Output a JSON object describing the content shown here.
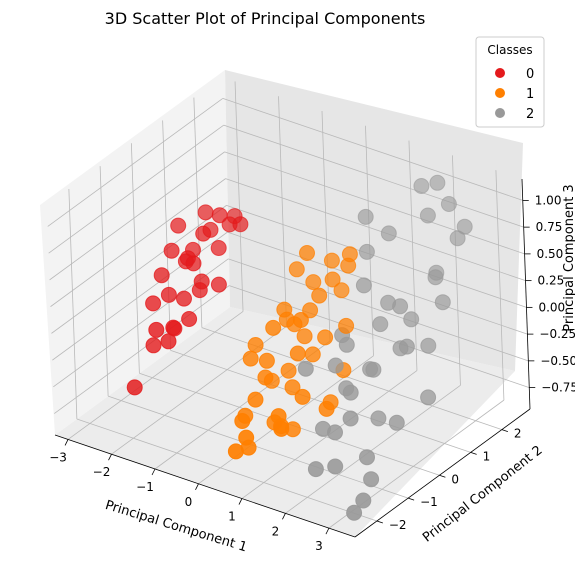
{
  "chart_data": {
    "type": "scatter",
    "projection": "3d",
    "title": "3D Scatter Plot of Principal Components",
    "xlabel": "Principal Component 1",
    "ylabel": "Principal Component 2",
    "zlabel": "Principal Component 3",
    "xlim": [
      -3.3,
      3.6
    ],
    "ylim": [
      -2.7,
      2.9
    ],
    "zlim": [
      -0.95,
      1.2
    ],
    "x_ticks": [
      -3,
      -2,
      -1,
      0,
      1,
      2,
      3
    ],
    "y_ticks": [
      -2,
      -1,
      0,
      1,
      2
    ],
    "z_ticks": [
      -0.75,
      -0.5,
      -0.25,
      0.0,
      0.25,
      0.5,
      0.75,
      1.0
    ],
    "z_tick_labels": [
      "−0.75",
      "−0.50",
      "−0.25",
      "0.00",
      "0.25",
      "0.50",
      "0.75",
      "1.00"
    ],
    "grid": true,
    "legend": {
      "title": "Classes",
      "placement": "top-right"
    },
    "series": [
      {
        "name": "0",
        "color": "#e41a1c",
        "points": [
          [
            -2.6,
            0.2,
            0.25
          ],
          [
            -2.7,
            -0.3,
            -0.15
          ],
          [
            -2.5,
            0.5,
            0.1
          ],
          [
            -2.4,
            -0.2,
            -0.05
          ],
          [
            -2.3,
            0.3,
            0.2
          ],
          [
            -2.2,
            0.0,
            -0.1
          ],
          [
            -2.2,
            0.9,
            0.35
          ],
          [
            -2.1,
            -0.5,
            -0.25
          ],
          [
            -2.0,
            0.4,
            0.45
          ],
          [
            -1.9,
            0.1,
            0.0
          ],
          [
            -2.8,
            0.7,
            0.35
          ],
          [
            -2.0,
            -0.8,
            -0.3
          ],
          [
            -1.8,
            0.6,
            0.3
          ],
          [
            -2.5,
            -0.6,
            -0.45
          ],
          [
            -2.3,
            0.9,
            0.5
          ],
          [
            -1.7,
            -0.1,
            0.15
          ],
          [
            -1.9,
            0.8,
            0.55
          ],
          [
            -2.6,
            -1.1,
            -0.75
          ],
          [
            -2.1,
            0.2,
            0.2
          ],
          [
            -2.4,
            0.6,
            0.2
          ],
          [
            -1.6,
            0.3,
            0.05
          ],
          [
            -2.2,
            -0.9,
            -0.2
          ],
          [
            -2.0,
            1.4,
            0.4
          ],
          [
            -1.8,
            -0.4,
            -0.15
          ],
          [
            -2.7,
            0.0,
            0.05
          ],
          [
            -2.3,
            -0.2,
            -0.35
          ],
          [
            -1.5,
            0.9,
            0.5
          ],
          [
            -1.9,
            1.1,
            0.4
          ]
        ]
      },
      {
        "name": "1",
        "color": "#ff7f00",
        "points": [
          [
            0.4,
            0.4,
            0.6
          ],
          [
            0.2,
            -0.7,
            -0.2
          ],
          [
            0.1,
            0.1,
            0.0
          ],
          [
            0.5,
            -1.5,
            -0.35
          ],
          [
            0.8,
            0.2,
            0.3
          ],
          [
            0.0,
            -0.3,
            -0.5
          ],
          [
            0.7,
            -1.2,
            -0.6
          ],
          [
            1.2,
            0.6,
            0.55
          ],
          [
            0.6,
            0.9,
            0.45
          ],
          [
            0.3,
            -0.9,
            -0.3
          ],
          [
            -0.2,
            -0.5,
            -0.15
          ],
          [
            1.0,
            -0.8,
            0.0
          ],
          [
            0.9,
            -0.2,
            -0.15
          ],
          [
            0.5,
            0.3,
            0.1
          ],
          [
            1.1,
            -1.6,
            -0.4
          ],
          [
            0.2,
            -0.1,
            0.15
          ],
          [
            0.8,
            0.9,
            0.2
          ],
          [
            -0.1,
            -0.8,
            -0.2
          ],
          [
            0.6,
            -1.9,
            -0.7
          ],
          [
            1.4,
            0.2,
            0.1
          ],
          [
            0.3,
            0.7,
            0.25
          ],
          [
            0.7,
            -0.6,
            -0.4
          ],
          [
            1.3,
            -1.1,
            -0.3
          ],
          [
            0.4,
            -0.3,
            -0.35
          ],
          [
            0.1,
            -1.3,
            -0.6
          ],
          [
            0.9,
            0.5,
            0.4
          ],
          [
            1.5,
            -0.5,
            -0.45
          ],
          [
            0.6,
            -2.3,
            -0.65
          ],
          [
            1.2,
            -0.2,
            0.05
          ],
          [
            0.0,
            0.6,
            0.35
          ],
          [
            0.5,
            0.1,
            -0.1
          ],
          [
            1.0,
            -1.4,
            -0.55
          ],
          [
            1.7,
            -0.9,
            -0.4
          ],
          [
            0.2,
            0.2,
            -0.05
          ],
          [
            0.8,
            -0.4,
            0.2
          ],
          [
            1.1,
            0.8,
            0.6
          ],
          [
            0.4,
            -1.8,
            -0.5
          ],
          [
            0.7,
            -2.1,
            -0.55
          ],
          [
            1.6,
            -0.2,
            -0.2
          ],
          [
            0.9,
            -0.9,
            -0.7
          ],
          [
            0.3,
            -0.6,
            0.1
          ],
          [
            1.3,
            -1.8,
            -0.45
          ]
        ]
      },
      {
        "name": "2",
        "color": "#999999",
        "points": [
          [
            1.7,
            2.3,
            1.0
          ],
          [
            2.0,
            2.4,
            1.05
          ],
          [
            2.4,
            2.2,
            0.95
          ],
          [
            2.2,
            1.8,
            0.9
          ],
          [
            1.5,
            1.5,
            0.7
          ],
          [
            2.8,
            1.9,
            0.75
          ],
          [
            3.0,
            1.1,
            0.35
          ],
          [
            2.5,
            0.4,
            0.0
          ],
          [
            2.3,
            -0.2,
            -0.1
          ],
          [
            2.0,
            0.1,
            -0.2
          ],
          [
            1.8,
            -0.4,
            -0.3
          ],
          [
            2.6,
            -0.5,
            -0.45
          ],
          [
            3.1,
            -0.6,
            -0.4
          ],
          [
            2.9,
            -1.3,
            -0.6
          ],
          [
            3.3,
            -2.0,
            -0.8
          ],
          [
            2.1,
            -1.2,
            -0.5
          ],
          [
            1.6,
            -0.9,
            -0.6
          ],
          [
            2.4,
            0.9,
            0.15
          ],
          [
            2.7,
            1.3,
            0.5
          ],
          [
            1.9,
            0.6,
            0.1
          ],
          [
            1.3,
            0.2,
            0.0
          ],
          [
            1.5,
            -0.3,
            -0.15
          ],
          [
            2.2,
            -0.8,
            -0.2
          ],
          [
            3.4,
            0.0,
            -0.25
          ],
          [
            2.8,
            0.2,
            0.1
          ],
          [
            1.2,
            1.2,
            0.55
          ],
          [
            0.9,
            1.6,
            0.75
          ],
          [
            2.5,
            1.6,
            0.45
          ],
          [
            3.2,
            -1.6,
            -0.7
          ],
          [
            2.0,
            -1.7,
            -0.75
          ],
          [
            1.1,
            -0.7,
            -0.15
          ],
          [
            2.3,
            0.7,
            0.3
          ],
          [
            1.8,
            1.0,
            0.2
          ],
          [
            3.0,
            0.6,
            0.05
          ],
          [
            2.6,
            -1.9,
            -0.6
          ],
          [
            1.4,
            0.8,
            0.35
          ],
          [
            2.9,
            2.0,
            0.85
          ],
          [
            1.7,
            -0.2,
            0.05
          ],
          [
            2.4,
            -1.1,
            -0.35
          ],
          [
            3.3,
            -2.3,
            -0.85
          ]
        ]
      }
    ]
  }
}
